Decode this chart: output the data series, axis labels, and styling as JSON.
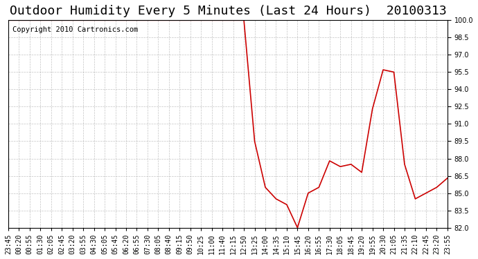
{
  "title": "Outdoor Humidity Every 5 Minutes (Last 24 Hours)  20100313",
  "copyright_text": "Copyright 2010 Cartronics.com",
  "line_color": "#cc0000",
  "bg_color": "#ffffff",
  "plot_bg_color": "#ffffff",
  "grid_color": "#aaaaaa",
  "ylim": [
    82.0,
    100.0
  ],
  "yticks": [
    82.0,
    83.5,
    85.0,
    86.5,
    88.0,
    89.5,
    91.0,
    92.5,
    94.0,
    95.5,
    97.0,
    98.5,
    100.0
  ],
  "x_labels": [
    "23:45",
    "00:20",
    "00:55",
    "01:30",
    "02:05",
    "02:45",
    "03:20",
    "03:55",
    "04:30",
    "05:05",
    "05:45",
    "06:20",
    "06:55",
    "07:30",
    "08:05",
    "08:40",
    "09:15",
    "09:50",
    "10:25",
    "11:00",
    "11:40",
    "12:15",
    "12:50",
    "13:25",
    "14:00",
    "14:35",
    "15:10",
    "15:45",
    "16:20",
    "16:55",
    "17:30",
    "18:05",
    "18:45",
    "19:20",
    "19:55",
    "20:30",
    "21:05",
    "21:35",
    "22:10",
    "22:45",
    "23:20",
    "23:55"
  ],
  "data_points": [
    [
      0,
      100.0
    ],
    [
      1,
      100.0
    ],
    [
      2,
      100.0
    ],
    [
      3,
      100.0
    ],
    [
      4,
      100.0
    ],
    [
      5,
      100.0
    ],
    [
      6,
      100.0
    ],
    [
      7,
      100.0
    ],
    [
      8,
      100.0
    ],
    [
      9,
      100.0
    ],
    [
      10,
      100.0
    ],
    [
      11,
      100.0
    ],
    [
      12,
      100.0
    ],
    [
      13,
      100.0
    ],
    [
      14,
      100.0
    ],
    [
      15,
      100.0
    ],
    [
      16,
      100.0
    ],
    [
      17,
      100.0
    ],
    [
      18,
      100.0
    ],
    [
      19,
      100.0
    ],
    [
      20,
      100.0
    ],
    [
      21,
      100.0
    ],
    [
      22,
      100.0
    ],
    [
      23,
      89.5
    ],
    [
      24,
      85.5
    ],
    [
      25,
      84.5
    ],
    [
      26,
      84.0
    ],
    [
      27,
      82.0
    ],
    [
      28,
      85.0
    ],
    [
      29,
      85.5
    ],
    [
      30,
      87.8
    ],
    [
      31,
      87.3
    ],
    [
      32,
      87.5
    ],
    [
      33,
      86.8
    ],
    [
      34,
      92.3
    ],
    [
      35,
      95.7
    ],
    [
      36,
      95.5
    ],
    [
      37,
      87.5
    ],
    [
      38,
      84.5
    ],
    [
      39,
      85.0
    ],
    [
      40,
      85.5
    ],
    [
      41,
      86.3
    ]
  ],
  "title_fontsize": 13,
  "axis_fontsize": 7,
  "copyright_fontsize": 7.5
}
